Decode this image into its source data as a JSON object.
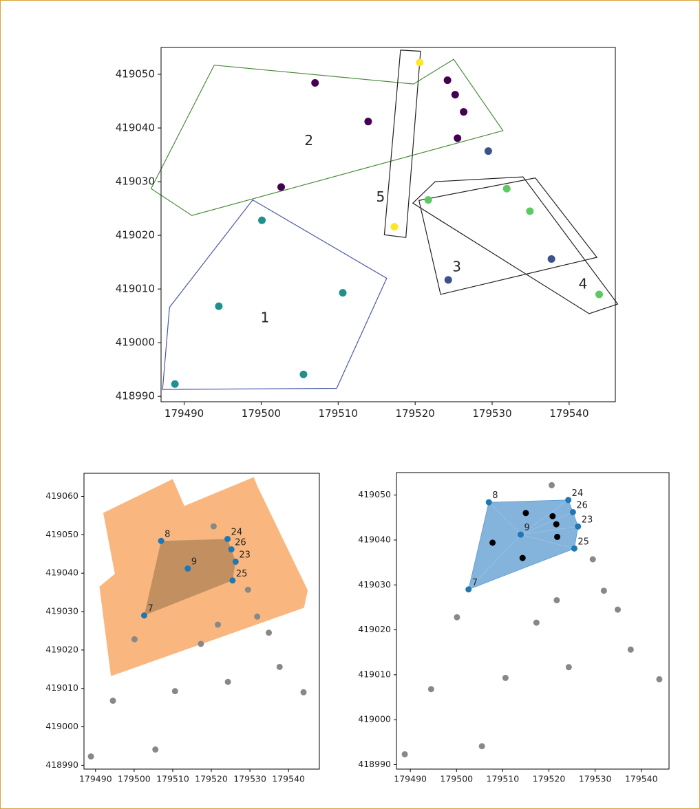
{
  "figure": {
    "border_color": "#d7a13a"
  },
  "chart_data": [
    {
      "type": "scatter",
      "xlim": [
        179487,
        179546
      ],
      "ylim": [
        418989,
        419055
      ],
      "x_ticks": [
        179490,
        179500,
        179510,
        179520,
        179530,
        179540
      ],
      "y_ticks": [
        418990,
        419000,
        419010,
        419020,
        419030,
        419040,
        419050
      ],
      "grid": false,
      "polygons": [
        {
          "label": "1",
          "color": "#4a56a8",
          "label_pos": [
            179500.5,
            419004.5
          ],
          "points": [
            [
              179488.1,
              419006.6
            ],
            [
              179498.9,
              419026.6
            ],
            [
              179516.3,
              419012.0
            ],
            [
              179509.8,
              418991.5
            ],
            [
              179487.2,
              418991.3
            ]
          ]
        },
        {
          "label": "2",
          "color": "#4b8a3a",
          "label_pos": [
            179506.2,
            419037.5
          ],
          "points": [
            [
              179485.7,
              419028.7
            ],
            [
              179493.9,
              419051.7
            ],
            [
              179519.8,
              419048.2
            ],
            [
              179525.0,
              419052.8
            ],
            [
              179531.4,
              419039.5
            ],
            [
              179491.0,
              419023.7
            ]
          ]
        },
        {
          "label": "3",
          "color": "#222222",
          "label_pos": [
            179525.4,
            419014.0
          ],
          "points": [
            [
              179520.5,
              419026.5
            ],
            [
              179535.6,
              419030.7
            ],
            [
              179543.6,
              419015.9
            ],
            [
              179523.3,
              419009.0
            ]
          ]
        },
        {
          "label": "4",
          "color": "#222222",
          "label_pos": [
            179541.8,
            419010.8
          ],
          "points": [
            [
              179522.6,
              419030.0
            ],
            [
              179534.0,
              419030.9
            ],
            [
              179546.3,
              419007.2
            ],
            [
              179542.6,
              419005.4
            ],
            [
              179519.7,
              419026.0
            ]
          ]
        },
        {
          "label": "5",
          "color": "#222222",
          "label_pos": [
            179515.5,
            419027.0
          ],
          "points": [
            [
              179518.1,
              419054.5
            ],
            [
              179520.7,
              419054.3
            ],
            [
              179518.8,
              419019.6
            ],
            [
              179516.0,
              419020.1
            ]
          ]
        }
      ],
      "points": [
        {
          "x": 179488.8,
          "y": 418992.3,
          "color": "#21908d"
        },
        {
          "x": 179494.5,
          "y": 419006.8,
          "color": "#21908d"
        },
        {
          "x": 179500.1,
          "y": 419022.8,
          "color": "#21908d"
        },
        {
          "x": 179505.5,
          "y": 418994.1,
          "color": "#21908d"
        },
        {
          "x": 179510.6,
          "y": 419009.3,
          "color": "#21908d"
        },
        {
          "x": 179502.6,
          "y": 419029.0,
          "color": "#440154"
        },
        {
          "x": 179507.0,
          "y": 419048.4,
          "color": "#440154"
        },
        {
          "x": 179513.9,
          "y": 419041.2,
          "color": "#440154"
        },
        {
          "x": 179524.2,
          "y": 419048.9,
          "color": "#440154"
        },
        {
          "x": 179525.2,
          "y": 419046.2,
          "color": "#440154"
        },
        {
          "x": 179526.3,
          "y": 419043.0,
          "color": "#440154"
        },
        {
          "x": 179525.5,
          "y": 419038.1,
          "color": "#440154"
        },
        {
          "x": 179529.5,
          "y": 419035.7,
          "color": "#3b528b"
        },
        {
          "x": 179524.3,
          "y": 419011.7,
          "color": "#3b528b"
        },
        {
          "x": 179537.7,
          "y": 419015.6,
          "color": "#3b528b"
        },
        {
          "x": 179521.7,
          "y": 419026.6,
          "color": "#5ec962"
        },
        {
          "x": 179531.9,
          "y": 419028.7,
          "color": "#5ec962"
        },
        {
          "x": 179534.9,
          "y": 419024.5,
          "color": "#5ec962"
        },
        {
          "x": 179543.9,
          "y": 419009.0,
          "color": "#5ec962"
        },
        {
          "x": 179520.6,
          "y": 419052.2,
          "color": "#fde725"
        },
        {
          "x": 179517.3,
          "y": 419021.6,
          "color": "#fde725"
        }
      ]
    },
    {
      "type": "scatter",
      "xlim": [
        179487,
        179548
      ],
      "ylim": [
        418989,
        419066
      ],
      "x_ticks": [
        179490,
        179500,
        179510,
        179520,
        179530,
        179540
      ],
      "y_ticks": [
        418990,
        419000,
        419010,
        419020,
        419030,
        419040,
        419050,
        419060
      ],
      "grid": false,
      "fill_color": "#f9b77f",
      "hull_color": "#b98a5a",
      "highlight_color": "#1f77b4",
      "other_color": "#888888",
      "fill_polygon": [
        [
          179491,
          419036.5
        ],
        [
          179495,
          419039.8
        ],
        [
          179492,
          419055.7
        ],
        [
          179510,
          419064.5
        ],
        [
          179513,
          419057.5
        ],
        [
          179531,
          419065.0
        ],
        [
          179532,
          419062.5
        ],
        [
          179545,
          419035.5
        ],
        [
          179544,
          419031.0
        ],
        [
          179494,
          419013.2
        ]
      ],
      "hull": [
        [
          179502.6,
          419029.0
        ],
        [
          179507.0,
          419048.4
        ],
        [
          179524.2,
          419048.9
        ],
        [
          179526.3,
          419043.0
        ],
        [
          179525.5,
          419038.1
        ]
      ],
      "highlight_points": [
        {
          "x": 179502.6,
          "y": 419029.0,
          "label": "7"
        },
        {
          "x": 179507.0,
          "y": 419048.4,
          "label": "8"
        },
        {
          "x": 179513.9,
          "y": 419041.2,
          "label": "9"
        },
        {
          "x": 179524.2,
          "y": 419048.9,
          "label": "24"
        },
        {
          "x": 179525.2,
          "y": 419046.2,
          "label": "26"
        },
        {
          "x": 179526.3,
          "y": 419043.0,
          "label": "23"
        },
        {
          "x": 179525.5,
          "y": 419038.1,
          "label": "25"
        }
      ],
      "other_points": [
        [
          179488.8,
          418992.3
        ],
        [
          179494.5,
          419006.8
        ],
        [
          179500.1,
          419022.8
        ],
        [
          179505.5,
          418994.1
        ],
        [
          179510.6,
          419009.3
        ],
        [
          179517.3,
          419021.6
        ],
        [
          179520.6,
          419052.2
        ],
        [
          179521.7,
          419026.6
        ],
        [
          179524.3,
          419011.7
        ],
        [
          179529.5,
          419035.7
        ],
        [
          179531.9,
          419028.7
        ],
        [
          179534.9,
          419024.5
        ],
        [
          179537.7,
          419015.6
        ],
        [
          179543.9,
          419009.0
        ]
      ]
    },
    {
      "type": "scatter",
      "xlim": [
        179487,
        179546
      ],
      "ylim": [
        418989,
        419055
      ],
      "x_ticks": [
        179490,
        179500,
        179510,
        179520,
        179530,
        179540
      ],
      "y_ticks": [
        418990,
        419000,
        419010,
        419020,
        419030,
        419040,
        419050
      ],
      "grid": false,
      "fill_color": "#6fa6d6",
      "highlight_color": "#1f77b4",
      "inner_color": "#000000",
      "other_color": "#888888",
      "hull": [
        [
          179502.6,
          419029.0
        ],
        [
          179507.0,
          419048.4
        ],
        [
          179524.2,
          419048.9
        ],
        [
          179525.2,
          419046.2
        ],
        [
          179526.3,
          419043.0
        ],
        [
          179525.5,
          419038.1
        ]
      ],
      "highlight_points": [
        {
          "x": 179502.6,
          "y": 419029.0,
          "label": "7"
        },
        {
          "x": 179507.0,
          "y": 419048.4,
          "label": "8"
        },
        {
          "x": 179513.9,
          "y": 419041.2,
          "label": "9"
        },
        {
          "x": 179524.2,
          "y": 419048.9,
          "label": "24"
        },
        {
          "x": 179525.2,
          "y": 419046.2,
          "label": "26"
        },
        {
          "x": 179526.3,
          "y": 419043.0,
          "label": "23"
        },
        {
          "x": 179525.5,
          "y": 419038.1,
          "label": "25"
        }
      ],
      "inner_points": [
        [
          179515.0,
          419046.0
        ],
        [
          179520.8,
          419045.3
        ],
        [
          179521.6,
          419043.5
        ],
        [
          179521.8,
          419040.7
        ],
        [
          179507.8,
          419039.4
        ],
        [
          179514.3,
          419036.0
        ]
      ],
      "other_points": [
        [
          179488.8,
          418992.3
        ],
        [
          179494.5,
          419006.8
        ],
        [
          179500.1,
          419022.8
        ],
        [
          179505.5,
          418994.1
        ],
        [
          179510.6,
          419009.3
        ],
        [
          179517.3,
          419021.6
        ],
        [
          179520.6,
          419052.2
        ],
        [
          179521.7,
          419026.6
        ],
        [
          179524.3,
          419011.7
        ],
        [
          179529.5,
          419035.7
        ],
        [
          179531.9,
          419028.7
        ],
        [
          179534.9,
          419024.5
        ],
        [
          179537.7,
          419015.6
        ],
        [
          179543.9,
          419009.0
        ]
      ]
    }
  ]
}
